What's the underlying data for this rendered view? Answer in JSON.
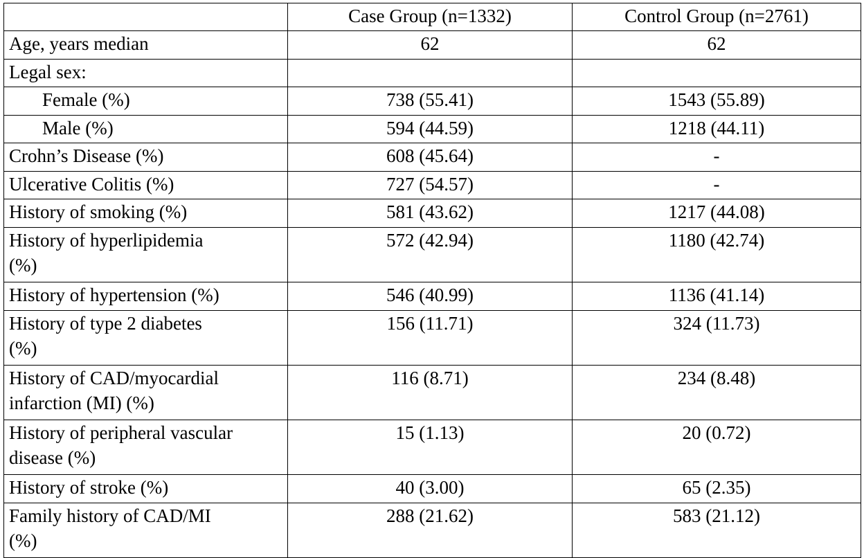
{
  "table": {
    "header": [
      "",
      "Case Group (n=1332)",
      "Control Group (n=2761)"
    ],
    "rows": [
      {
        "label": "Age, years median",
        "case": "62",
        "control": "62"
      },
      {
        "label": "Legal sex:",
        "case": "",
        "control": ""
      },
      {
        "label": "Female (%)",
        "case": "738 (55.41)",
        "control": "1543 (55.89)"
      },
      {
        "label": "Male (%)",
        "case": "594 (44.59)",
        "control": "1218 (44.11)"
      },
      {
        "label": "Crohn’s Disease (%)",
        "case": "608 (45.64)",
        "control": "-"
      },
      {
        "label": "Ulcerative Colitis (%)",
        "case": "727 (54.57)",
        "control": "-"
      },
      {
        "label": "History of smoking (%)",
        "case": "581 (43.62)",
        "control": "1217 (44.08)"
      },
      {
        "label": [
          "History of hyperlipidemia",
          "(%)"
        ],
        "case": "572 (42.94)",
        "control": "1180 (42.74)"
      },
      {
        "label": "History of hypertension (%)",
        "case": "546 (40.99)",
        "control": "1136 (41.14)"
      },
      {
        "label": [
          "History of type 2 diabetes",
          "(%)"
        ],
        "case": "156 (11.71)",
        "control": "324 (11.73)"
      },
      {
        "label": [
          "History of CAD/myocardial",
          "infarction (MI) (%)"
        ],
        "case": "116 (8.71)",
        "control": "234 (8.48)"
      },
      {
        "label": [
          "History of peripheral vascular",
          "disease (%)"
        ],
        "case": "15 (1.13)",
        "control": "20 (0.72)"
      },
      {
        "label": "History of stroke (%)",
        "case": "40 (3.00)",
        "control": "65 (2.35)"
      },
      {
        "label": [
          "Family history of CAD/MI",
          "(%)"
        ],
        "case": "288 (21.62)",
        "control": "583 (21.12)"
      }
    ]
  }
}
